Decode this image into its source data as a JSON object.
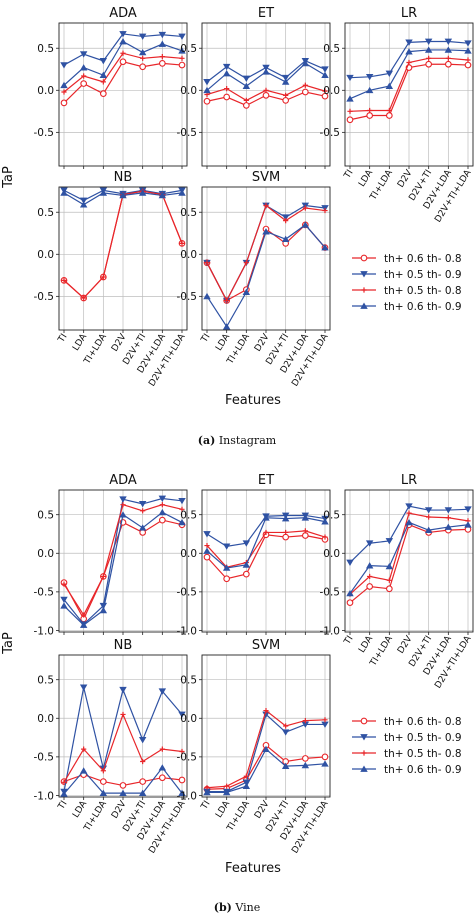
{
  "colors": {
    "red": "#e8262a",
    "blue": "#2f52a3",
    "grid": "#bdbdbd"
  },
  "legend": [
    {
      "label": "th+ 0.6 th- 0.8",
      "color": "#e8262a",
      "marker": "circle-open"
    },
    {
      "label": "th+ 0.5 th- 0.9",
      "color": "#2f52a3",
      "marker": "triangle-down"
    },
    {
      "label": "th+ 0.5 th- 0.8",
      "color": "#e8262a",
      "marker": "plus"
    },
    {
      "label": "th+ 0.6 th- 0.9",
      "color": "#2f52a3",
      "marker": "triangle-up"
    }
  ],
  "figures": [
    {
      "caption_label": "(a)",
      "caption_text": "Instagram",
      "ylabel": "TaP",
      "xlabel": "Features",
      "chart_data": [
        {
          "type": "line",
          "title": "ADA",
          "categories": [
            "TI",
            "LDA",
            "TI+LDA",
            "D2V",
            "D2V+TI",
            "D2V+LDA",
            "D2V+TI+LDA"
          ],
          "ylim": [
            -0.9,
            0.8
          ],
          "yticks": [
            0.5,
            0.0,
            -0.5
          ],
          "series": [
            {
              "name": "th+ 0.6 th- 0.8",
              "values": [
                -0.15,
                0.08,
                -0.04,
                0.34,
                0.28,
                0.32,
                0.3
              ]
            },
            {
              "name": "th+ 0.5 th- 0.9",
              "values": [
                0.3,
                0.43,
                0.35,
                0.67,
                0.64,
                0.66,
                0.64
              ]
            },
            {
              "name": "th+ 0.5 th- 0.8",
              "values": [
                -0.02,
                0.17,
                0.1,
                0.44,
                0.38,
                0.4,
                0.38
              ]
            },
            {
              "name": "th+ 0.6 th- 0.9",
              "values": [
                0.06,
                0.27,
                0.18,
                0.58,
                0.45,
                0.55,
                0.47
              ]
            }
          ]
        },
        {
          "type": "line",
          "title": "ET",
          "categories": [
            "TI",
            "LDA",
            "TI+LDA",
            "D2V",
            "D2V+TI",
            "D2V+LDA",
            "D2V+TI+LDA"
          ],
          "ylim": [
            -0.9,
            0.8
          ],
          "yticks": [
            0.5,
            0.0,
            -0.5
          ],
          "series": [
            {
              "name": "th+ 0.6 th- 0.8",
              "values": [
                -0.13,
                -0.08,
                -0.18,
                -0.06,
                -0.12,
                -0.02,
                -0.07
              ]
            },
            {
              "name": "th+ 0.5 th- 0.9",
              "values": [
                0.1,
                0.28,
                0.14,
                0.27,
                0.15,
                0.35,
                0.25
              ]
            },
            {
              "name": "th+ 0.5 th- 0.8",
              "values": [
                -0.05,
                0.02,
                -0.12,
                0.0,
                -0.06,
                0.06,
                -0.01
              ]
            },
            {
              "name": "th+ 0.6 th- 0.9",
              "values": [
                0.0,
                0.2,
                0.05,
                0.22,
                0.1,
                0.32,
                0.18
              ]
            }
          ]
        },
        {
          "type": "line",
          "title": "LR",
          "categories": [
            "TI",
            "LDA",
            "TI+LDA",
            "D2V",
            "D2V+TI",
            "D2V+LDA",
            "D2V+TI+LDA"
          ],
          "ylim": [
            -0.9,
            0.8
          ],
          "yticks": [
            0.5,
            0.0,
            -0.5
          ],
          "series": [
            {
              "name": "th+ 0.6 th- 0.8",
              "values": [
                -0.35,
                -0.3,
                -0.3,
                0.27,
                0.31,
                0.31,
                0.3
              ]
            },
            {
              "name": "th+ 0.5 th- 0.9",
              "values": [
                0.15,
                0.16,
                0.2,
                0.57,
                0.58,
                0.58,
                0.56
              ]
            },
            {
              "name": "th+ 0.5 th- 0.8",
              "values": [
                -0.25,
                -0.24,
                -0.24,
                0.33,
                0.38,
                0.38,
                0.36
              ]
            },
            {
              "name": "th+ 0.6 th- 0.9",
              "values": [
                -0.1,
                0.0,
                0.05,
                0.46,
                0.48,
                0.48,
                0.47
              ]
            }
          ]
        },
        {
          "type": "line",
          "title": "NB",
          "categories": [
            "TI",
            "LDA",
            "TI+LDA",
            "D2V",
            "D2V+TI",
            "D2V+LDA",
            "D2V+TI+LDA"
          ],
          "ylim": [
            -0.9,
            0.8
          ],
          "yticks": [
            0.5,
            0.0,
            -0.5
          ],
          "series": [
            {
              "name": "th+ 0.6 th- 0.8",
              "values": [
                -0.31,
                -0.52,
                -0.27,
                0.71,
                0.75,
                0.71,
                0.13
              ]
            },
            {
              "name": "th+ 0.5 th- 0.9",
              "values": [
                0.76,
                0.64,
                0.76,
                0.72,
                0.76,
                0.72,
                0.76
              ]
            },
            {
              "name": "th+ 0.5 th- 0.8",
              "values": [
                -0.31,
                -0.52,
                -0.27,
                0.71,
                0.75,
                0.71,
                0.13
              ]
            },
            {
              "name": "th+ 0.6 th- 0.9",
              "values": [
                0.73,
                0.59,
                0.73,
                0.7,
                0.73,
                0.7,
                0.73
              ]
            }
          ]
        },
        {
          "type": "line",
          "title": "SVM",
          "categories": [
            "TI",
            "LDA",
            "TI+LDA",
            "D2V",
            "D2V+TI",
            "D2V+LDA",
            "D2V+TI+LDA"
          ],
          "ylim": [
            -0.9,
            0.8
          ],
          "yticks": [
            0.5,
            0.0,
            -0.5
          ],
          "series": [
            {
              "name": "th+ 0.6 th- 0.8",
              "values": [
                -0.1,
                -0.55,
                -0.42,
                0.3,
                0.13,
                0.35,
                0.08
              ]
            },
            {
              "name": "th+ 0.5 th- 0.9",
              "values": [
                -0.1,
                -0.55,
                -0.1,
                0.58,
                0.44,
                0.58,
                0.55
              ]
            },
            {
              "name": "th+ 0.5 th- 0.8",
              "values": [
                -0.1,
                -0.55,
                -0.1,
                0.58,
                0.4,
                0.55,
                0.52
              ]
            },
            {
              "name": "th+ 0.6 th- 0.9",
              "values": [
                -0.5,
                -0.86,
                -0.45,
                0.27,
                0.18,
                0.35,
                0.08
              ]
            }
          ]
        }
      ]
    },
    {
      "caption_label": "(b)",
      "caption_text": "Vine",
      "ylabel": "TaP",
      "xlabel": "Features",
      "chart_data": [
        {
          "type": "line",
          "title": "ADA",
          "categories": [
            "TI",
            "LDA",
            "TI+LDA",
            "D2V",
            "D2V+TI",
            "D2V+LDA",
            "D2V+TI+LDA"
          ],
          "ylim": [
            -1.02,
            0.82
          ],
          "yticks": [
            0.5,
            0.0,
            -0.5,
            -1.0
          ],
          "series": [
            {
              "name": "th+ 0.6 th- 0.8",
              "values": [
                -0.38,
                -0.85,
                -0.3,
                0.4,
                0.27,
                0.43,
                0.37
              ]
            },
            {
              "name": "th+ 0.5 th- 0.9",
              "values": [
                -0.6,
                -0.92,
                -0.68,
                0.7,
                0.64,
                0.71,
                0.68
              ]
            },
            {
              "name": "th+ 0.5 th- 0.8",
              "values": [
                -0.4,
                -0.8,
                -0.3,
                0.63,
                0.55,
                0.63,
                0.57
              ]
            },
            {
              "name": "th+ 0.6 th- 0.9",
              "values": [
                -0.68,
                -0.93,
                -0.74,
                0.5,
                0.33,
                0.53,
                0.4
              ]
            }
          ]
        },
        {
          "type": "line",
          "title": "ET",
          "categories": [
            "TI",
            "LDA",
            "TI+LDA",
            "D2V",
            "D2V+TI",
            "D2V+LDA",
            "D2V+TI+LDA"
          ],
          "ylim": [
            -1.02,
            0.82
          ],
          "yticks": [
            0.5,
            0.0,
            -0.5,
            -1.0
          ],
          "series": [
            {
              "name": "th+ 0.6 th- 0.8",
              "values": [
                -0.05,
                -0.33,
                -0.27,
                0.24,
                0.21,
                0.23,
                0.18
              ]
            },
            {
              "name": "th+ 0.5 th- 0.9",
              "values": [
                0.25,
                0.09,
                0.13,
                0.48,
                0.49,
                0.49,
                0.45
              ]
            },
            {
              "name": "th+ 0.5 th- 0.8",
              "values": [
                0.1,
                -0.18,
                -0.12,
                0.27,
                0.27,
                0.29,
                0.21
              ]
            },
            {
              "name": "th+ 0.6 th- 0.9",
              "values": [
                0.03,
                -0.19,
                -0.15,
                0.46,
                0.45,
                0.46,
                0.41
              ]
            }
          ]
        },
        {
          "type": "line",
          "title": "LR",
          "categories": [
            "TI",
            "LDA",
            "TI+LDA",
            "D2V",
            "D2V+TI",
            "D2V+LDA",
            "D2V+TI+LDA"
          ],
          "ylim": [
            -1.02,
            0.82
          ],
          "yticks": [
            0.5,
            0.0,
            -0.5,
            -1.0
          ],
          "series": [
            {
              "name": "th+ 0.6 th- 0.8",
              "values": [
                -0.64,
                -0.43,
                -0.46,
                0.37,
                0.27,
                0.3,
                0.31
              ]
            },
            {
              "name": "th+ 0.5 th- 0.9",
              "values": [
                -0.12,
                0.13,
                0.16,
                0.61,
                0.56,
                0.56,
                0.57
              ]
            },
            {
              "name": "th+ 0.5 th- 0.8",
              "values": [
                -0.53,
                -0.3,
                -0.35,
                0.52,
                0.47,
                0.46,
                0.42
              ]
            },
            {
              "name": "th+ 0.6 th- 0.9",
              "values": [
                -0.52,
                -0.16,
                -0.17,
                0.4,
                0.3,
                0.34,
                0.37
              ]
            }
          ]
        },
        {
          "type": "line",
          "title": "NB",
          "categories": [
            "TI",
            "LDA",
            "TI+LDA",
            "D2V",
            "D2V+TI",
            "D2V+LDA",
            "D2V+TI+LDA"
          ],
          "ylim": [
            -1.02,
            0.82
          ],
          "yticks": [
            0.5,
            0.0,
            -0.5,
            -1.0
          ],
          "series": [
            {
              "name": "th+ 0.6 th- 0.8",
              "values": [
                -0.82,
                -0.73,
                -0.82,
                -0.87,
                -0.82,
                -0.77,
                -0.8
              ]
            },
            {
              "name": "th+ 0.5 th- 0.9",
              "values": [
                -0.95,
                0.4,
                -0.65,
                0.37,
                -0.28,
                0.35,
                0.05
              ]
            },
            {
              "name": "th+ 0.5 th- 0.8",
              "values": [
                -0.83,
                -0.4,
                -0.68,
                0.05,
                -0.56,
                -0.4,
                -0.43
              ]
            },
            {
              "name": "th+ 0.6 th- 0.9",
              "values": [
                -0.98,
                -0.68,
                -0.97,
                -0.97,
                -0.97,
                -0.64,
                -0.97
              ]
            }
          ]
        },
        {
          "type": "line",
          "title": "SVM",
          "categories": [
            "TI",
            "LDA",
            "TI+LDA",
            "D2V",
            "D2V+TI",
            "D2V+LDA",
            "D2V+TI+LDA"
          ],
          "ylim": [
            -1.02,
            0.82
          ],
          "yticks": [
            0.5,
            0.0,
            -0.5,
            -1.0
          ],
          "series": [
            {
              "name": "th+ 0.6 th- 0.8",
              "values": [
                -0.92,
                -0.91,
                -0.8,
                -0.35,
                -0.56,
                -0.52,
                -0.5
              ]
            },
            {
              "name": "th+ 0.5 th- 0.9",
              "values": [
                -0.95,
                -0.95,
                -0.83,
                0.05,
                -0.18,
                -0.08,
                -0.08
              ]
            },
            {
              "name": "th+ 0.5 th- 0.8",
              "values": [
                -0.9,
                -0.88,
                -0.75,
                0.1,
                -0.1,
                -0.03,
                -0.02
              ]
            },
            {
              "name": "th+ 0.6 th- 0.9",
              "values": [
                -0.96,
                -0.96,
                -0.88,
                -0.4,
                -0.62,
                -0.61,
                -0.59
              ]
            }
          ]
        }
      ]
    }
  ]
}
